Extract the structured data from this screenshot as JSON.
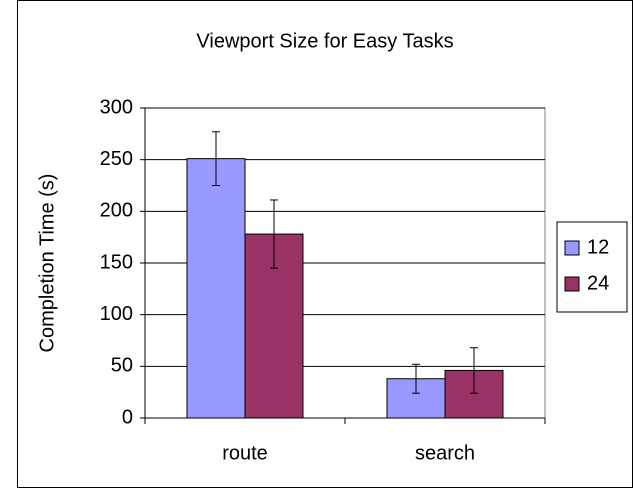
{
  "chart_data": {
    "type": "bar",
    "title": "Viewport Size for Easy Tasks",
    "y_label": "Completion Time (s)",
    "categories": [
      "route",
      "search"
    ],
    "series": [
      {
        "name": "12",
        "color": "#9999ff",
        "values": [
          251,
          38
        ],
        "errors": [
          26,
          14
        ]
      },
      {
        "name": "24",
        "color": "#993366",
        "values": [
          178,
          46
        ],
        "errors": [
          33,
          22
        ]
      }
    ],
    "ylim": [
      0,
      300
    ],
    "yticks": [
      0,
      50,
      100,
      150,
      200,
      250,
      300
    ],
    "grid": true,
    "legend": "right"
  }
}
